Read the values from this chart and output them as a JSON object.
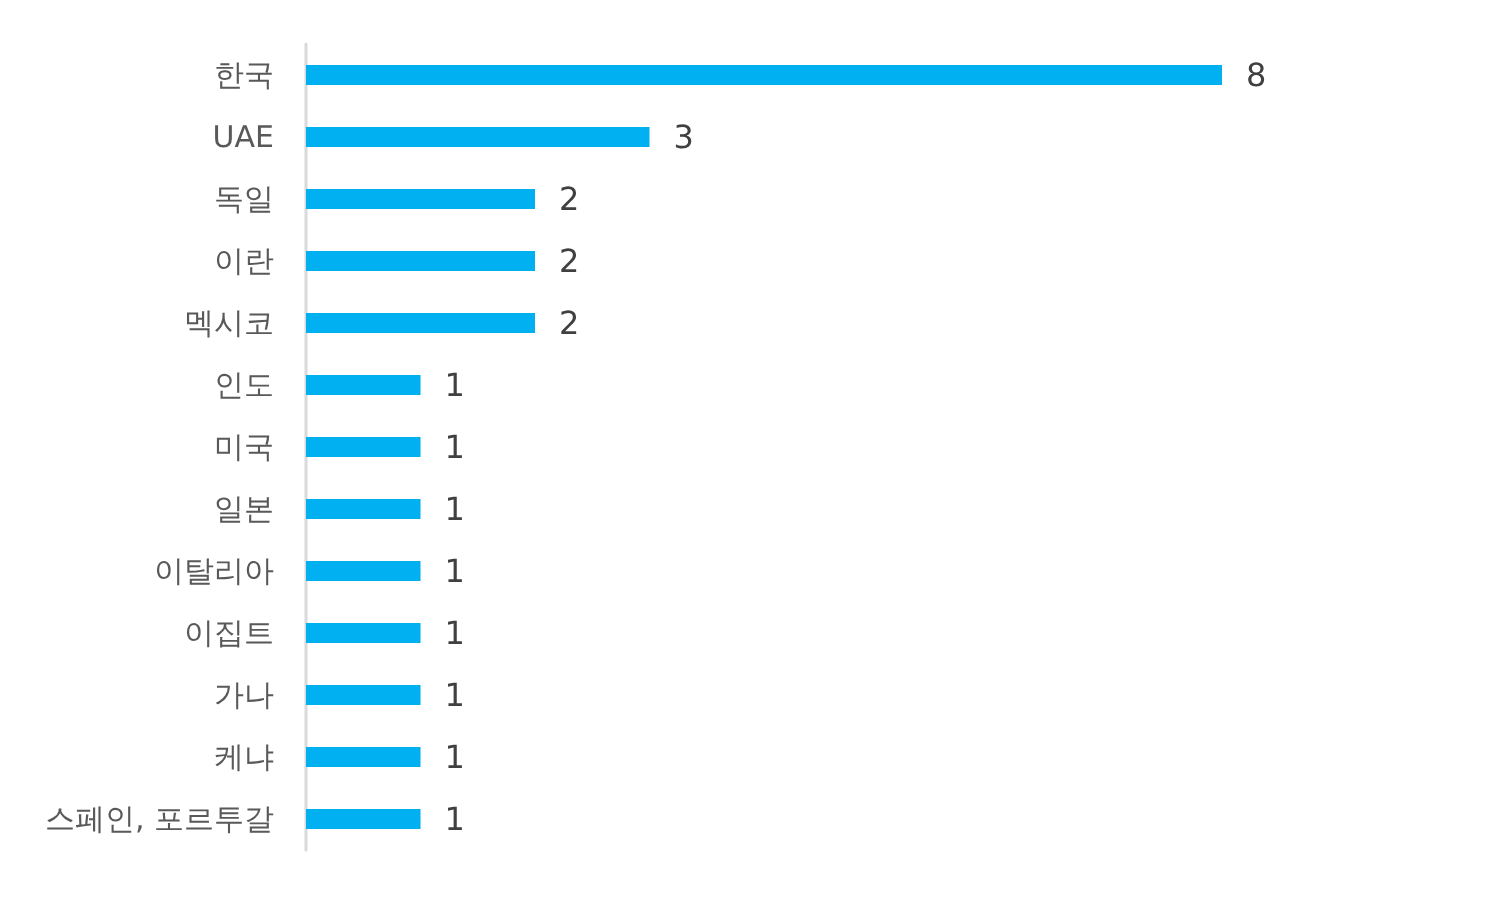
{
  "chart_data": {
    "type": "bar",
    "orientation": "horizontal",
    "categories": [
      "한국",
      "UAE",
      "독일",
      "이란",
      "멕시코",
      "인도",
      "미국",
      "일본",
      "이탈리아",
      "이집트",
      "가나",
      "케냐",
      "스페인, 포르투갈"
    ],
    "values": [
      8,
      3,
      2,
      2,
      2,
      1,
      1,
      1,
      1,
      1,
      1,
      1,
      1
    ],
    "color": "#00b0f0",
    "data_labels": true,
    "tick_labels": "y"
  }
}
